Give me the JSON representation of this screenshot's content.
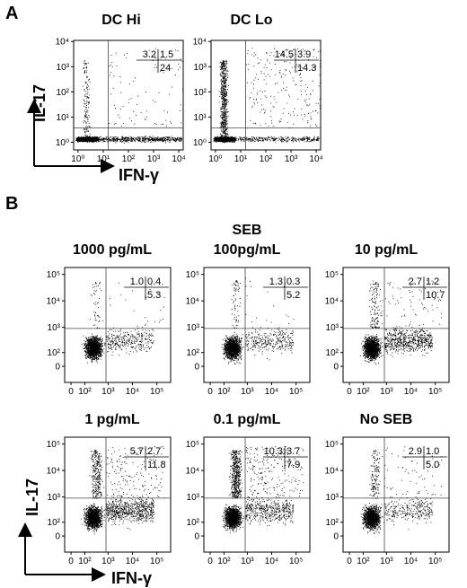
{
  "panel_a": {
    "letter": "A",
    "ylabel": "IL-17",
    "xlabel": "IFN-γ",
    "plots": [
      {
        "title": "DC Hi",
        "tl": "3.2",
        "tr": "1.5",
        "br": "24"
      },
      {
        "title": "DC Lo",
        "tl": "14.5",
        "tr": "3.9",
        "br": "14.3"
      }
    ]
  },
  "panel_b": {
    "letter": "B",
    "header": "SEB",
    "ylabel": "IL-17",
    "xlabel": "IFN-γ",
    "plots": [
      {
        "title": "1000 pg/mL",
        "tl": "1.0",
        "tr": "0.4",
        "br": "5.3"
      },
      {
        "title": "100pg/mL",
        "tl": "1.3",
        "tr": "0.3",
        "br": "5.2"
      },
      {
        "title": "10 pg/mL",
        "tl": "2.7",
        "tr": "1.2",
        "br": "10.7"
      },
      {
        "title": "1 pg/mL",
        "tl": "5.7",
        "tr": "2.7",
        "br": "11.8"
      },
      {
        "title": "0.1 pg/mL",
        "tl": "10.3",
        "tr": "3.7",
        "br": "7.9"
      },
      {
        "title": "No SEB",
        "tl": "2.9",
        "tr": "1.0",
        "br": "5.0"
      }
    ]
  },
  "chart_data": [
    {
      "type": "scatter",
      "panel": "A",
      "title": "DC Hi",
      "xlabel": "IFN-γ",
      "ylabel": "IL-17",
      "x_scale": "log",
      "y_scale": "log",
      "xlim": [
        1,
        10000
      ],
      "ylim": [
        1,
        10000
      ],
      "x_ticks": [
        "10⁰",
        "10¹",
        "10²",
        "10³",
        "10⁴"
      ],
      "y_ticks": [
        "10⁰",
        "10¹",
        "10²",
        "10³",
        "10⁴"
      ],
      "gate": {
        "x": 18,
        "y": 5
      },
      "quadrant_percent": {
        "upper_left": 3.2,
        "upper_right": 1.5,
        "lower_right": 24
      }
    },
    {
      "type": "scatter",
      "panel": "A",
      "title": "DC Lo",
      "xlabel": "IFN-γ",
      "ylabel": "IL-17",
      "x_scale": "log",
      "y_scale": "log",
      "xlim": [
        1,
        10000
      ],
      "ylim": [
        1,
        10000
      ],
      "x_ticks": [
        "10⁰",
        "10¹",
        "10²",
        "10³",
        "10⁴"
      ],
      "y_ticks": [
        "10⁰",
        "10¹",
        "10²",
        "10³",
        "10⁴"
      ],
      "gate": {
        "x": 18,
        "y": 5
      },
      "quadrant_percent": {
        "upper_left": 14.5,
        "upper_right": 3.9,
        "lower_right": 14.3
      }
    },
    {
      "type": "scatter",
      "panel": "B",
      "title": "1000 pg/mL",
      "xlabel": "IFN-γ",
      "ylabel": "IL-17",
      "x_ticks": [
        "0",
        "10²",
        "10³",
        "10⁴",
        "10⁵"
      ],
      "y_ticks": [
        "0",
        "10²",
        "10³",
        "10⁴",
        "10⁵"
      ],
      "gate": {
        "x": 500,
        "y": 700
      },
      "quadrant_percent": {
        "upper_left": 1.0,
        "upper_right": 0.4,
        "lower_right": 5.3
      }
    },
    {
      "type": "scatter",
      "panel": "B",
      "title": "100pg/mL",
      "xlabel": "IFN-γ",
      "ylabel": "IL-17",
      "x_ticks": [
        "0",
        "10²",
        "10³",
        "10⁴",
        "10⁵"
      ],
      "y_ticks": [
        "0",
        "10²",
        "10³",
        "10⁴",
        "10⁵"
      ],
      "gate": {
        "x": 500,
        "y": 700
      },
      "quadrant_percent": {
        "upper_left": 1.3,
        "upper_right": 0.3,
        "lower_right": 5.2
      }
    },
    {
      "type": "scatter",
      "panel": "B",
      "title": "10 pg/mL",
      "xlabel": "IFN-γ",
      "ylabel": "IL-17",
      "x_ticks": [
        "0",
        "10²",
        "10³",
        "10⁴",
        "10⁵"
      ],
      "y_ticks": [
        "0",
        "10²",
        "10³",
        "10⁴",
        "10⁵"
      ],
      "gate": {
        "x": 500,
        "y": 700
      },
      "quadrant_percent": {
        "upper_left": 2.7,
        "upper_right": 1.2,
        "lower_right": 10.7
      }
    },
    {
      "type": "scatter",
      "panel": "B",
      "title": "1 pg/mL",
      "xlabel": "IFN-γ",
      "ylabel": "IL-17",
      "x_ticks": [
        "0",
        "10²",
        "10³",
        "10⁴",
        "10⁵"
      ],
      "y_ticks": [
        "0",
        "10²",
        "10³",
        "10⁴",
        "10⁵"
      ],
      "gate": {
        "x": 500,
        "y": 700
      },
      "quadrant_percent": {
        "upper_left": 5.7,
        "upper_right": 2.7,
        "lower_right": 11.8
      }
    },
    {
      "type": "scatter",
      "panel": "B",
      "title": "0.1 pg/mL",
      "xlabel": "IFN-γ",
      "ylabel": "IL-17",
      "x_ticks": [
        "0",
        "10²",
        "10³",
        "10⁴",
        "10⁵"
      ],
      "y_ticks": [
        "0",
        "10²",
        "10³",
        "10⁴",
        "10⁵"
      ],
      "gate": {
        "x": 500,
        "y": 700
      },
      "quadrant_percent": {
        "upper_left": 10.3,
        "upper_right": 3.7,
        "lower_right": 7.9
      }
    },
    {
      "type": "scatter",
      "panel": "B",
      "title": "No SEB",
      "xlabel": "IFN-γ",
      "ylabel": "IL-17",
      "x_ticks": [
        "0",
        "10²",
        "10³",
        "10⁴",
        "10⁵"
      ],
      "y_ticks": [
        "0",
        "10²",
        "10³",
        "10⁴",
        "10⁵"
      ],
      "gate": {
        "x": 500,
        "y": 700
      },
      "quadrant_percent": {
        "upper_left": 2.9,
        "upper_right": 1.0,
        "lower_right": 5.0
      }
    }
  ]
}
